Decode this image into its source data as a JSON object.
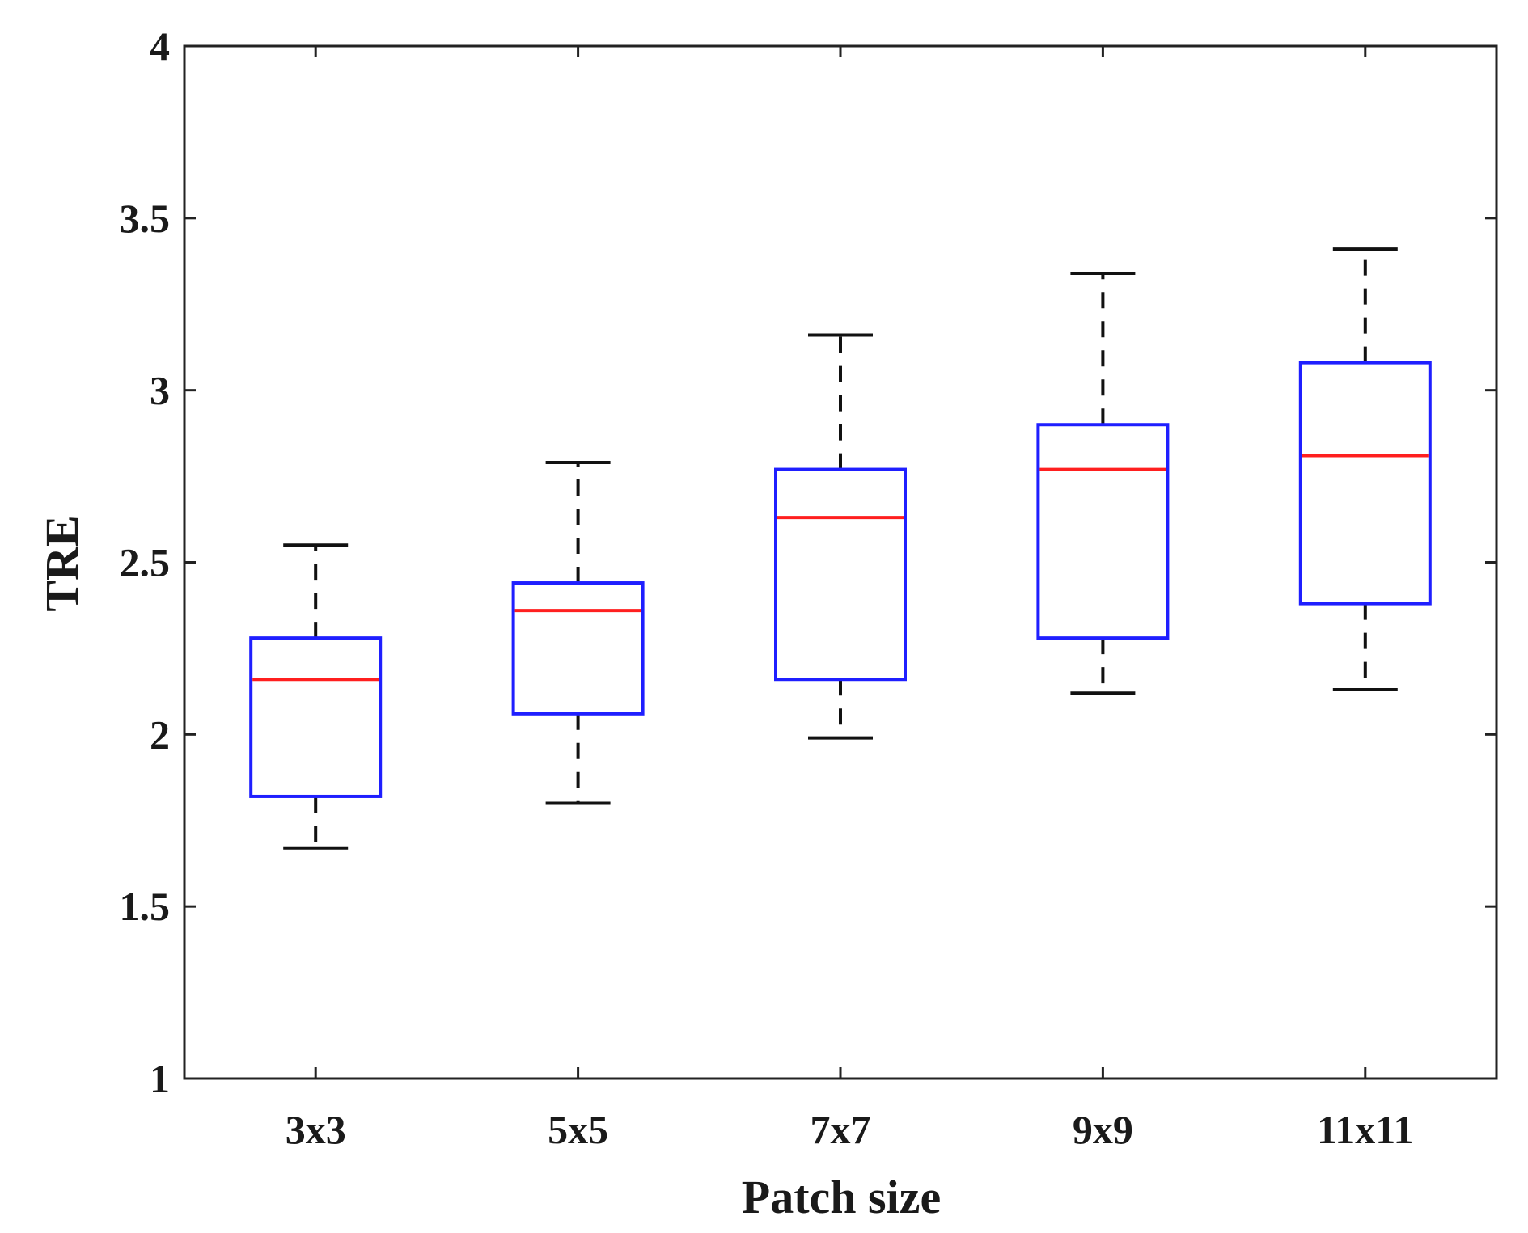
{
  "chart_data": {
    "type": "boxplot",
    "title": "",
    "xlabel": "Patch size",
    "ylabel": "TRE",
    "categories": [
      "3x3",
      "5x5",
      "7x7",
      "9x9",
      "11x11"
    ],
    "ylim": [
      1,
      4
    ],
    "yticks": [
      1,
      1.5,
      2,
      2.5,
      3,
      3.5,
      4
    ],
    "ytick_labels": [
      "1",
      "1.5",
      "2",
      "2.5",
      "3",
      "3.5",
      "4"
    ],
    "grid": false,
    "boxes": [
      {
        "category": "3x3",
        "whisker_low": 1.67,
        "q1": 1.82,
        "median": 2.16,
        "q3": 2.28,
        "whisker_high": 2.55
      },
      {
        "category": "5x5",
        "whisker_low": 1.8,
        "q1": 2.06,
        "median": 2.36,
        "q3": 2.44,
        "whisker_high": 2.79
      },
      {
        "category": "7x7",
        "whisker_low": 1.99,
        "q1": 2.16,
        "median": 2.63,
        "q3": 2.77,
        "whisker_high": 3.16
      },
      {
        "category": "9x9",
        "whisker_low": 2.12,
        "q1": 2.28,
        "median": 2.77,
        "q3": 2.9,
        "whisker_high": 3.34
      },
      {
        "category": "11x11",
        "whisker_low": 2.13,
        "q1": 2.38,
        "median": 2.81,
        "q3": 3.08,
        "whisker_high": 3.41
      }
    ],
    "colors": {
      "box": "#1f1fff",
      "median": "#ff1f1f",
      "whisker": "#111111",
      "axis": "#222222"
    }
  }
}
